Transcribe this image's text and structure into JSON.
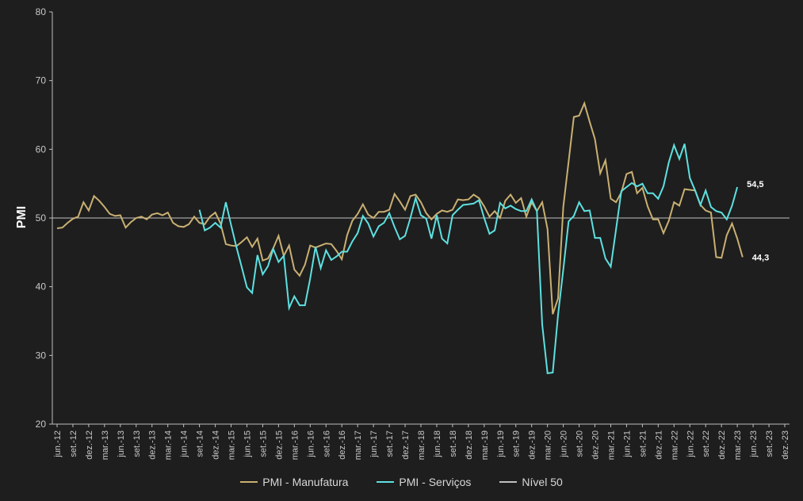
{
  "colors": {
    "background": "#1e1e1e",
    "manufatura": "#c9b072",
    "servicos": "#5ee0e0",
    "nivel": "#c0c0c0",
    "axis": "#bfbfbf"
  },
  "chart_data": {
    "type": "line",
    "ylabel": "PMI",
    "ylim": [
      20,
      80
    ],
    "yticks": [
      20,
      30,
      40,
      50,
      60,
      70,
      80
    ],
    "start_month": "jun.-12",
    "xtick_labels": [
      "jun.-12",
      "set.-12",
      "dez.-12",
      "mar.-13",
      "jun.-13",
      "set.-13",
      "dez.-13",
      "mar.-14",
      "jun.-14",
      "set.-14",
      "dez.-14",
      "mar.-15",
      "jun.-15",
      "set.-15",
      "dez.-15",
      "mar.-16",
      "jun.-16",
      "set.-16",
      "dez.-16",
      "mar.-17",
      "jun.-17",
      "set.-17",
      "dez.-17",
      "mar.-18",
      "jun.-18",
      "set.-18",
      "dez.-18",
      "mar.-19",
      "jun.-19",
      "set.-19",
      "dez.-19",
      "mar.-20",
      "jun.-20",
      "set.-20",
      "dez.-20",
      "mar.-21",
      "jun.-21",
      "set.-21",
      "dez.-21",
      "mar.-22",
      "jun.-22",
      "set.-22",
      "dez.-22",
      "mar.-23",
      "jun.-23",
      "set.-23",
      "dez.-23"
    ],
    "series": [
      {
        "name": "PMI - Manufatura",
        "start_index": 0,
        "end_label": "44,3",
        "values": [
          48.5,
          48.6,
          49.3,
          49.9,
          50.2,
          52.3,
          51.1,
          53.2,
          52.5,
          51.6,
          50.6,
          50.3,
          50.4,
          48.6,
          49.4,
          50.0,
          50.2,
          49.8,
          50.5,
          50.7,
          50.4,
          50.8,
          49.3,
          48.8,
          48.7,
          49.1,
          50.2,
          49.3,
          49.1,
          50.2,
          50.8,
          49.2,
          46.2,
          46.0,
          45.9,
          46.5,
          47.2,
          45.8,
          47.0,
          43.8,
          44.1,
          45.6,
          47.4,
          44.5,
          46.0,
          42.5,
          41.6,
          43.2,
          46.0,
          45.7,
          46.0,
          46.3,
          46.2,
          45.2,
          44.0,
          47.5,
          49.6,
          50.6,
          52.0,
          50.5,
          50.0,
          50.9,
          50.9,
          51.2,
          53.5,
          52.4,
          51.2,
          53.2,
          53.4,
          52.3,
          50.7,
          49.8,
          50.6,
          51.1,
          50.9,
          51.2,
          52.7,
          52.6,
          52.7,
          53.4,
          52.9,
          51.7,
          50.2,
          51.0,
          50.0,
          52.5,
          53.4,
          52.2,
          52.9,
          50.2,
          52.3,
          51.0,
          52.3,
          48.4,
          36.0,
          38.3,
          51.6,
          58.2,
          64.7,
          64.9,
          66.7,
          64.0,
          61.5,
          56.5,
          58.4,
          52.8,
          52.3,
          53.7,
          56.4,
          56.7,
          53.6,
          54.4,
          51.7,
          49.8,
          49.8,
          47.8,
          49.6,
          52.3,
          51.8,
          54.2,
          54.1,
          54.0,
          51.9,
          51.1,
          50.8,
          44.3,
          44.2,
          47.5,
          49.2,
          47.0,
          44.3
        ]
      },
      {
        "name": "PMI - Serviços",
        "start_index": 27,
        "end_label": "54,5",
        "values": [
          51.2,
          48.2,
          48.6,
          49.3,
          48.6,
          52.3,
          49.0,
          45.8,
          42.9,
          39.9,
          39.1,
          44.6,
          41.8,
          43.0,
          45.5,
          43.6,
          44.5,
          36.9,
          38.6,
          37.3,
          37.3,
          41.2,
          45.8,
          42.7,
          45.3,
          43.9,
          44.4,
          45.1,
          45.1,
          46.6,
          47.8,
          50.3,
          49.2,
          47.3,
          48.8,
          49.3,
          50.7,
          48.7,
          46.9,
          47.4,
          50.0,
          52.9,
          50.4,
          49.9,
          47.0,
          50.4,
          47.0,
          46.3,
          50.4,
          51.2,
          51.9,
          52.0,
          52.1,
          52.6,
          50.0,
          47.7,
          48.2,
          52.2,
          51.4,
          51.8,
          51.3,
          51.0,
          51.0,
          52.7,
          51.0,
          34.5,
          27.4,
          27.5,
          35.9,
          42.5,
          49.5,
          50.3,
          52.3,
          51.0,
          51.1,
          47.1,
          47.1,
          44.1,
          42.9,
          48.3,
          53.9,
          54.5,
          55.1,
          54.6,
          55.0,
          53.6,
          53.6,
          52.8,
          54.6,
          58.1,
          60.6,
          58.6,
          60.8,
          55.8,
          54.0,
          51.9,
          54.0,
          51.6,
          51.0,
          50.8,
          49.8,
          51.8,
          54.5
        ]
      },
      {
        "name": "Nível 50",
        "constant": 50
      }
    ],
    "legend": [
      "PMI - Manufatura",
      "PMI - Serviços",
      "Nível 50"
    ],
    "legend_position": "bottom"
  }
}
